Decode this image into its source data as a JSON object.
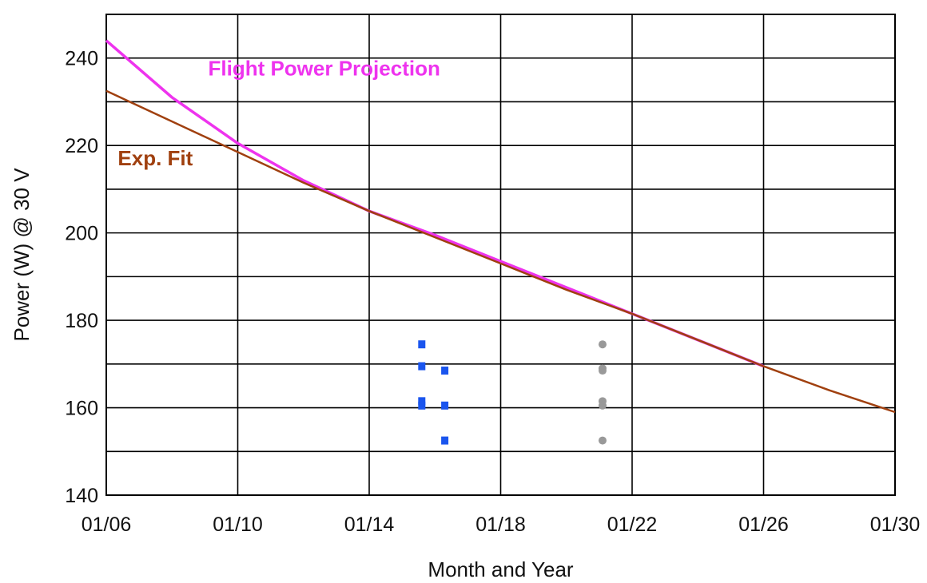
{
  "chart_data": {
    "type": "line",
    "xlabel": "Month and Year",
    "ylabel": "Power (W) @ 30 V",
    "xlim": [
      0,
      24
    ],
    "ylim": [
      140,
      250
    ],
    "grid": true,
    "x_ticks": [
      {
        "x": 0,
        "label": "01/06"
      },
      {
        "x": 4,
        "label": "01/10"
      },
      {
        "x": 8,
        "label": "01/14"
      },
      {
        "x": 12,
        "label": "01/18"
      },
      {
        "x": 16,
        "label": "01/22"
      },
      {
        "x": 20,
        "label": "01/26"
      },
      {
        "x": 24,
        "label": "01/30"
      }
    ],
    "y_ticks": [
      {
        "y": 140,
        "label": "140"
      },
      {
        "y": 160,
        "label": "160"
      },
      {
        "y": 180,
        "label": "180"
      },
      {
        "y": 200,
        "label": "200"
      },
      {
        "y": 220,
        "label": "220"
      },
      {
        "y": 240,
        "label": "240"
      }
    ],
    "series": [
      {
        "name": "Flight Power Projection",
        "kind": "line",
        "color": "#ee33ee",
        "x": [
          0,
          2,
          4,
          6,
          8,
          10,
          12,
          14,
          16,
          18,
          20
        ],
        "y": [
          244,
          231,
          220.5,
          212,
          205,
          199.5,
          193.5,
          187.5,
          181.5,
          175.5,
          169.5
        ]
      },
      {
        "name": "Exp. Fit",
        "kind": "line",
        "color": "#a0400f",
        "x": [
          0,
          2,
          4,
          6,
          8,
          10,
          12,
          14,
          16,
          18,
          20,
          22,
          24
        ],
        "y": [
          232.5,
          225.5,
          218.5,
          211.5,
          205,
          199,
          193,
          187,
          181.5,
          175.5,
          169.5,
          164,
          159
        ]
      },
      {
        "kind": "points",
        "color": "#1a55ee",
        "marker": "square",
        "x": [
          9.6,
          9.6,
          9.6,
          9.6,
          10.3,
          10.3,
          10.3
        ],
        "y": [
          174.5,
          169.5,
          161.5,
          160.5,
          168.5,
          160.5,
          152.5
        ]
      },
      {
        "kind": "points",
        "color": "#999999",
        "marker": "circle",
        "x": [
          15.1,
          15.1,
          15.1,
          15.1,
          15.1,
          15.1
        ],
        "y": [
          174.5,
          169,
          168.5,
          161.5,
          160.5,
          152.5
        ]
      }
    ],
    "annotations": [
      {
        "text": "Flight Power Projection",
        "color": "#ee33ee",
        "x": 3.1,
        "y": 236
      },
      {
        "text": "Exp. Fit",
        "color": "#a0400f",
        "x": 0.35,
        "y": 215.5
      }
    ]
  }
}
